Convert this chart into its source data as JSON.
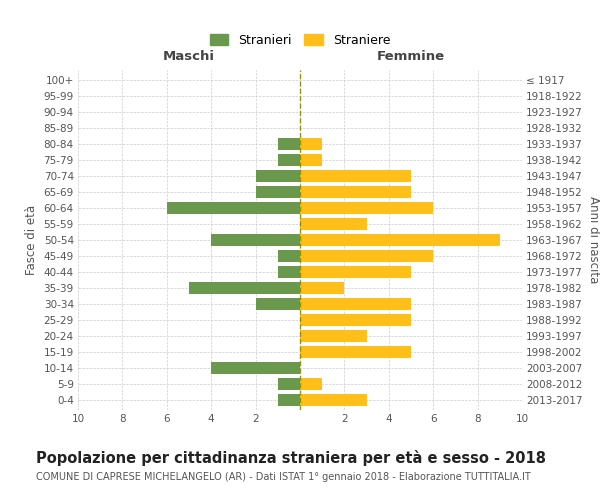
{
  "age_groups": [
    "0-4",
    "5-9",
    "10-14",
    "15-19",
    "20-24",
    "25-29",
    "30-34",
    "35-39",
    "40-44",
    "45-49",
    "50-54",
    "55-59",
    "60-64",
    "65-69",
    "70-74",
    "75-79",
    "80-84",
    "85-89",
    "90-94",
    "95-99",
    "100+"
  ],
  "birth_years": [
    "2013-2017",
    "2008-2012",
    "2003-2007",
    "1998-2002",
    "1993-1997",
    "1988-1992",
    "1983-1987",
    "1978-1982",
    "1973-1977",
    "1968-1972",
    "1963-1967",
    "1958-1962",
    "1953-1957",
    "1948-1952",
    "1943-1947",
    "1938-1942",
    "1933-1937",
    "1928-1932",
    "1923-1927",
    "1918-1922",
    "≤ 1917"
  ],
  "maschi": [
    1,
    1,
    4,
    0,
    0,
    0,
    2,
    5,
    1,
    1,
    4,
    0,
    6,
    2,
    2,
    1,
    1,
    0,
    0,
    0,
    0
  ],
  "femmine": [
    3,
    1,
    0,
    5,
    3,
    5,
    5,
    2,
    5,
    6,
    9,
    3,
    6,
    5,
    5,
    1,
    1,
    0,
    0,
    0,
    0
  ],
  "maschi_color": "#6a994e",
  "femmine_color": "#ffbf1a",
  "background_color": "#ffffff",
  "grid_color": "#cccccc",
  "title": "Popolazione per cittadinanza straniera per età e sesso - 2018",
  "subtitle": "COMUNE DI CAPRESE MICHELANGELO (AR) - Dati ISTAT 1° gennaio 2018 - Elaborazione TUTTITALIA.IT",
  "xlabel_left": "Maschi",
  "xlabel_right": "Femmine",
  "ylabel_left": "Fasce di età",
  "ylabel_right": "Anni di nascita",
  "legend_stranieri": "Stranieri",
  "legend_straniere": "Straniere",
  "xlim": 10,
  "bar_height": 0.75,
  "dashed_line_color": "#8b8b00",
  "title_fontsize": 10.5,
  "subtitle_fontsize": 7,
  "axis_label_fontsize": 8.5,
  "tick_fontsize": 7.5,
  "legend_fontsize": 9,
  "header_fontsize": 9.5
}
